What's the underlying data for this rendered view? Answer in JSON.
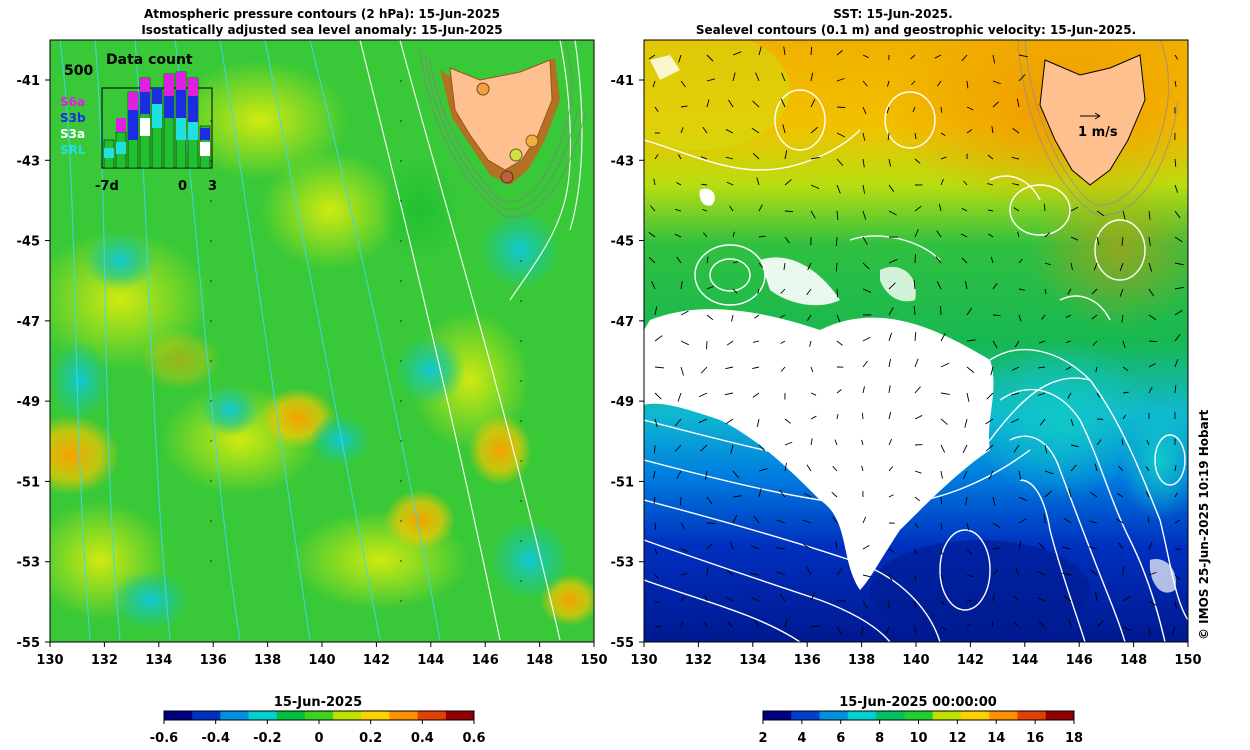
{
  "left_map": {
    "title_line1": "Atmospheric pressure contours (2 hPa): 15-Jun-2025",
    "title_line2": "Isostatically adjusted sea level anomaly: 15-Jun-2025",
    "y_ticks": [
      "-41",
      "-43",
      "-45",
      "-47",
      "-49",
      "-51",
      "-53",
      "-55"
    ],
    "x_ticks": [
      "130",
      "132",
      "134",
      "136",
      "138",
      "140",
      "142",
      "144",
      "146",
      "148",
      "150"
    ],
    "inset": {
      "title": "Data count",
      "ymax_label": "500",
      "legend": [
        {
          "label": "S6a",
          "color": "#e020e0"
        },
        {
          "label": "S3b",
          "color": "#1a2ee0"
        },
        {
          "label": "S3a",
          "color": "#ffffff"
        },
        {
          "label": "SRL",
          "color": "#20e0e0"
        }
      ],
      "x_labels": [
        "-7d",
        "0",
        "3"
      ]
    },
    "colorbar": {
      "title": "15-Jun-2025",
      "ticks": [
        "-0.6",
        "-0.4",
        "-0.2",
        "0",
        "0.2",
        "0.4",
        "0.6"
      ],
      "colors": [
        "#000080",
        "#0030c0",
        "#0090e0",
        "#00d0d0",
        "#00c040",
        "#40d020",
        "#c0e000",
        "#ffd000",
        "#ff9000",
        "#e04000",
        "#900000"
      ]
    }
  },
  "right_map": {
    "title_line1": "SST: 15-Jun-2025.",
    "title_line2": "Sealevel contours (0.1 m) and geostrophic velocity: 15-Jun-2025.",
    "y_ticks": [
      "-41",
      "-43",
      "-45",
      "-47",
      "-49",
      "-51",
      "-53",
      "-55"
    ],
    "x_ticks": [
      "130",
      "132",
      "134",
      "136",
      "138",
      "140",
      "142",
      "144",
      "146",
      "148",
      "150"
    ],
    "velocity_scale_label": "1 m/s",
    "colorbar": {
      "title": "15-Jun-2025 00:00:00",
      "ticks": [
        "2",
        "4",
        "6",
        "8",
        "10",
        "12",
        "14",
        "16",
        "18"
      ],
      "colors": [
        "#000080",
        "#0040d0",
        "#0090e0",
        "#00d0d0",
        "#00c060",
        "#20d030",
        "#c0e000",
        "#ffd000",
        "#ff9000",
        "#e04000",
        "#900000"
      ]
    }
  },
  "credit": "© IMOS 25-Jun-2025 10:19 Hobart"
}
